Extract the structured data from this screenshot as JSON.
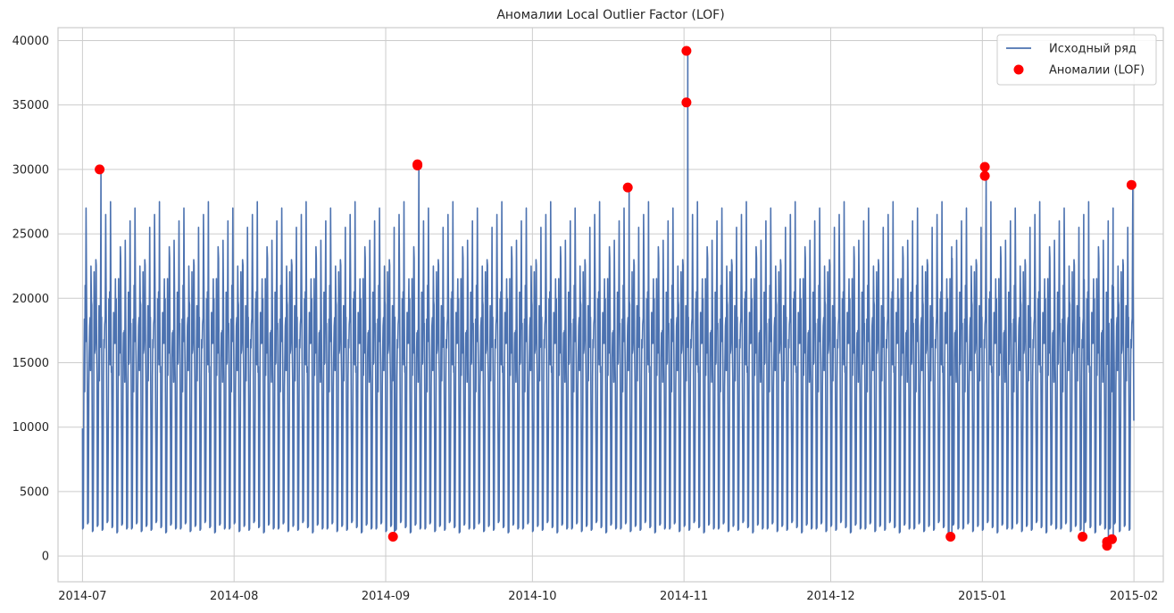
{
  "chart_data": {
    "type": "line",
    "title": "Аномалии Local Outlier Factor (LOF)",
    "xlabel": "",
    "ylabel": "",
    "x_range": [
      "2014-06-26",
      "2015-02-07"
    ],
    "ylim": [
      -2000,
      41000
    ],
    "x_ticks": [
      "2014-07",
      "2014-08",
      "2014-09",
      "2014-10",
      "2014-11",
      "2014-12",
      "2015-01",
      "2015-02"
    ],
    "x_tick_dates": [
      "2014-07-01",
      "2014-08-01",
      "2014-09-01",
      "2014-10-01",
      "2014-11-01",
      "2014-12-01",
      "2015-01-01",
      "2015-02-01"
    ],
    "y_ticks": [
      0,
      5000,
      10000,
      15000,
      20000,
      25000,
      30000,
      35000,
      40000
    ],
    "grid": true,
    "legend_position": "top-right",
    "colors": {
      "series": "#4c72b0",
      "anomaly": "#ff0000",
      "grid": "#cccccc",
      "frame": "#cccccc"
    },
    "series": [
      {
        "name": "Исходный ряд",
        "kind": "line",
        "date_start": "2014-07-01",
        "date_end": "2015-01-31",
        "daily_profile": {
          "night_min": [
            2100,
            2500,
            1900,
            2300,
            2000,
            2600,
            2200,
            1800,
            2400,
            2100
          ],
          "daytime_level": [
            18000,
            20500,
            16500,
            19500,
            17500,
            15000,
            21000,
            18500,
            16000,
            19000
          ],
          "evening_peak": [
            22500,
            26500,
            24000,
            27000,
            25500,
            21500,
            26000,
            23000,
            27500,
            24500
          ]
        }
      },
      {
        "name": "Аномалии (LOF)",
        "kind": "scatter",
        "points": [
          {
            "x": "2014-07-04",
            "y": 30000
          },
          {
            "x": "2014-09-02",
            "y": 1500
          },
          {
            "x": "2014-09-07",
            "y": 30300
          },
          {
            "x": "2014-09-07",
            "y": 30400
          },
          {
            "x": "2014-10-20",
            "y": 28600
          },
          {
            "x": "2014-11-01",
            "y": 39200
          },
          {
            "x": "2014-11-01",
            "y": 35200
          },
          {
            "x": "2014-12-25",
            "y": 1500
          },
          {
            "x": "2015-01-01",
            "y": 30200
          },
          {
            "x": "2015-01-01",
            "y": 29500
          },
          {
            "x": "2015-01-21",
            "y": 1500
          },
          {
            "x": "2015-01-26",
            "y": 800
          },
          {
            "x": "2015-01-26",
            "y": 1100
          },
          {
            "x": "2015-01-27",
            "y": 1300
          },
          {
            "x": "2015-01-31",
            "y": 28800
          }
        ]
      }
    ]
  }
}
